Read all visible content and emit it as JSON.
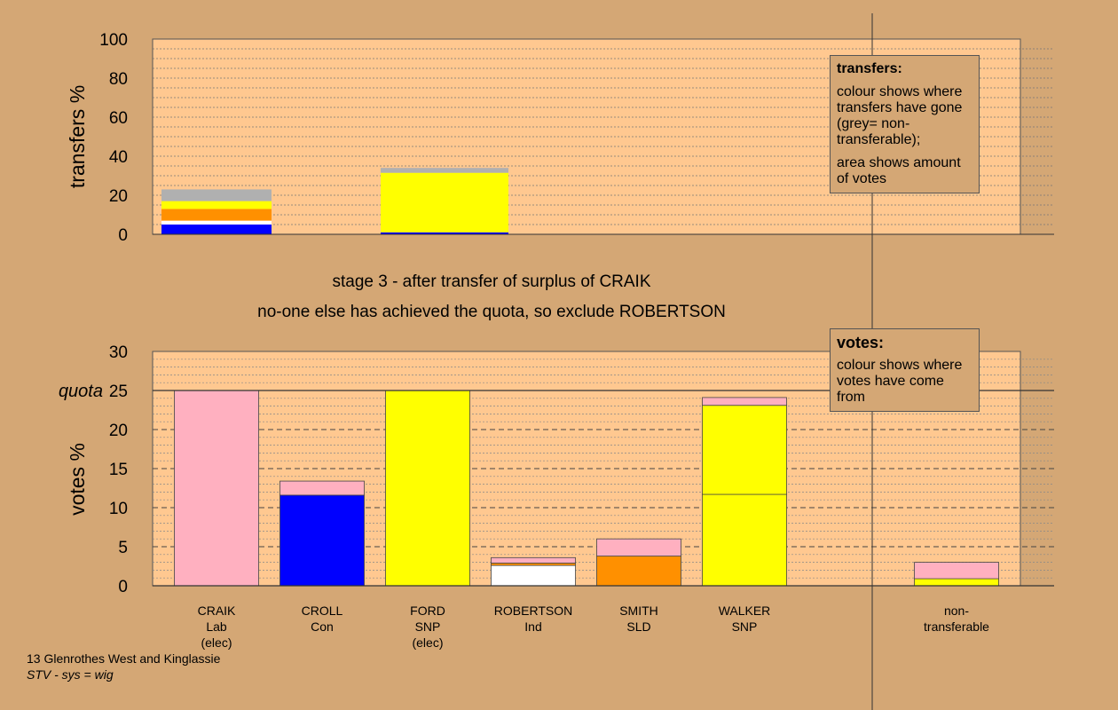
{
  "stage_lines": [
    "stage 3 - after transfer of surplus of CRAIK",
    "no-one else has achieved the quota, so exclude ROBERTSON"
  ],
  "legend_transfers": {
    "title": "transfers:",
    "desc1": "colour shows where transfers have gone (grey= non-transferable);",
    "desc2": "area shows amount of votes"
  },
  "legend_votes": {
    "title": "votes:",
    "desc1": "colour shows where votes have come from"
  },
  "footer": {
    "line1": "13 Glenrothes West and Kinglassie",
    "line2": "STV - sys = wig"
  },
  "colors": {
    "pink": "#ffb0c0",
    "blue": "#0000ff",
    "yellow": "#ffff00",
    "white": "#ffffff",
    "orange": "#ff9000",
    "grey": "#b0b0b0",
    "panel": "#ffc890",
    "background": "#d4a775"
  },
  "chart_data": [
    {
      "type": "bar",
      "name": "transfers",
      "ylabel": "transfers %",
      "ylim": [
        0,
        100
      ],
      "yticks": [
        0,
        20,
        40,
        60,
        80,
        100
      ],
      "bars": [
        {
          "index": 0,
          "segments": [
            {
              "color": "blue",
              "value": 5
            },
            {
              "color": "white",
              "value": 2
            },
            {
              "color": "orange",
              "value": 6
            },
            {
              "color": "yellow",
              "value": 4
            },
            {
              "color": "grey",
              "value": 6
            }
          ]
        },
        {
          "index": 2,
          "segments": [
            {
              "color": "blue",
              "value": 1
            },
            {
              "color": "yellow",
              "value": 30.5
            },
            {
              "color": "grey",
              "value": 2.5
            }
          ]
        }
      ]
    },
    {
      "type": "bar",
      "name": "votes",
      "ylabel": "votes %",
      "ylim": [
        0,
        30
      ],
      "yticks": [
        0,
        5,
        10,
        15,
        20,
        25,
        30
      ],
      "quota": 25,
      "quota_label": "quota",
      "candidates": [
        {
          "lines": [
            "CRAIK",
            "Lab",
            "(elec)"
          ],
          "segments": [
            {
              "color": "pink",
              "value": 25
            }
          ]
        },
        {
          "lines": [
            "CROLL",
            "Con"
          ],
          "segments": [
            {
              "color": "blue",
              "value": 11.6
            },
            {
              "color": "pink",
              "value": 1.8
            }
          ]
        },
        {
          "lines": [
            "FORD",
            "SNP",
            "(elec)"
          ],
          "segments": [
            {
              "color": "yellow",
              "value": 25
            }
          ]
        },
        {
          "lines": [
            "ROBERTSON",
            "Ind"
          ],
          "segments": [
            {
              "color": "white",
              "value": 2.6
            },
            {
              "color": "orange",
              "value": 0.3
            },
            {
              "color": "pink",
              "value": 0.7
            }
          ]
        },
        {
          "lines": [
            "SMITH",
            "SLD"
          ],
          "segments": [
            {
              "color": "orange",
              "value": 3.8
            },
            {
              "color": "pink",
              "value": 2.2
            }
          ]
        },
        {
          "lines": [
            "WALKER",
            "SNP"
          ],
          "segments": [
            {
              "color": "yellow",
              "value": 11.7
            },
            {
              "color": "yellow",
              "value": 11.4
            },
            {
              "color": "pink",
              "value": 1
            }
          ]
        },
        {
          "lines": [
            "non-",
            "transferable"
          ],
          "segments": [
            {
              "color": "yellow",
              "value": 0.9
            },
            {
              "color": "pink",
              "value": 2.1
            }
          ]
        }
      ]
    }
  ]
}
